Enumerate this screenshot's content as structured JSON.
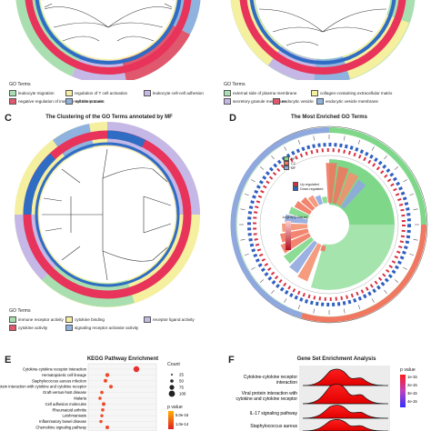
{
  "panel_a": {
    "legend_title": "GO Terms",
    "legend": [
      {
        "label": "leukocyte migration",
        "color": "#a9dfb0"
      },
      {
        "label": "regulation of T cell activation",
        "color": "#f5efa0"
      },
      {
        "label": "leukocyte cell-cell adhesion",
        "color": "#c6b8e6"
      },
      {
        "label": "negative regulation of immune system process",
        "color": "#e0586e"
      },
      {
        "label": "cell chemotaxis",
        "color": "#8fb3de"
      }
    ]
  },
  "panel_b": {
    "legend_title": "GO Terms",
    "legend": [
      {
        "label": "external side of plasma membrane",
        "color": "#a9dfb0"
      },
      {
        "label": "collagen-containing extracellular matrix",
        "color": "#f5efa0"
      },
      {
        "label": "secretory granule membrane",
        "color": "#c6b8e6"
      },
      {
        "label": "endocytic vesicle",
        "color": "#e0586e"
      },
      {
        "label": "endocytic vesicle membrane",
        "color": "#8fb3de"
      }
    ]
  },
  "panel_c": {
    "letter": "C",
    "title": "The Clustering of the GO Terms annotated by MF",
    "legend_title": "GO Terms",
    "legend": [
      {
        "label": "immune receptor activity",
        "color": "#a9dfb0"
      },
      {
        "label": "cytokine binding",
        "color": "#f5efa0"
      },
      {
        "label": "receptor ligand activity",
        "color": "#c6b8e6"
      },
      {
        "label": "cytokine activity",
        "color": "#e0586e"
      },
      {
        "label": "signaling receptor activator activity",
        "color": "#8fb3de"
      }
    ]
  },
  "panel_d": {
    "letter": "D",
    "title": "The Most Enriched GO Terms",
    "legend": [
      {
        "label": "BP",
        "color": "#7fd88a"
      },
      {
        "label": "CC",
        "color": "#f07860"
      },
      {
        "label": "MF",
        "color": "#8fa8de"
      },
      {
        "label": "Up-regulated",
        "color": "#d93040"
      },
      {
        "label": "Down-regulated",
        "color": "#3060c0"
      }
    ],
    "scale_title": "-log10(Q-Value)"
  },
  "panel_e": {
    "letter": "E",
    "title": "KEGG Pathway Enrichment",
    "count_title": "Count",
    "count_values": [
      "25",
      "50",
      "75",
      "100"
    ],
    "pvalue_title": "p value",
    "pvalue_ticks": [
      "5.0e-15",
      "1.0e-14"
    ],
    "pathways": [
      "Cytokine-cytokine receptor interaction",
      "Hematopoietic cell lineage",
      "Staphylococcus aureus infection",
      "Viral protein interaction with cytokine and cytokine receptor",
      "Graft-versus-host disease",
      "Malaria",
      "Cell adhesion molecules",
      "Rheumatoid arthritis",
      "Leishmaniasis",
      "Inflammatory bowel disease",
      "Chemokine signaling pathway"
    ]
  },
  "panel_f": {
    "letter": "F",
    "title": "Gene Set Enrichment Analysis",
    "pvalue_title": "p value",
    "pvalue_ticks": [
      "1e-15",
      "2e-15",
      "3e-15",
      "4e-15"
    ],
    "terms": [
      "Cytokine-cytokine receptor interaction",
      "Viral protein interaction with cytokine and cytokine receptor",
      "IL-17 signaling pathway",
      "Staphylococcus aureus"
    ]
  }
}
